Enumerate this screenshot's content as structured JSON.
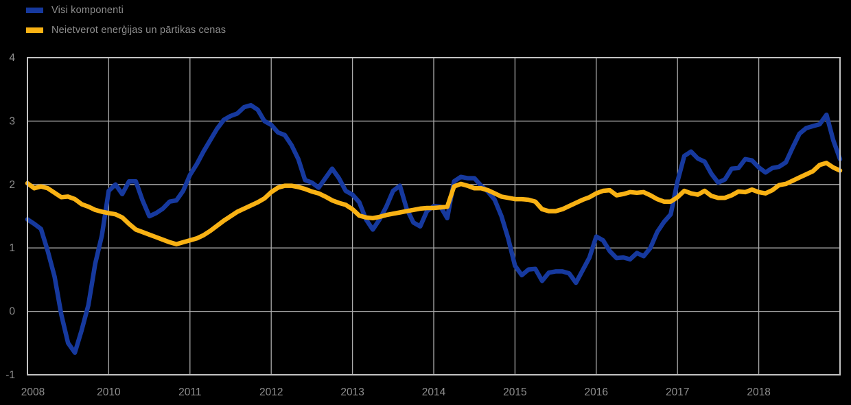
{
  "legend": {
    "position": "top-left",
    "items": [
      {
        "label": "Visi komponenti",
        "swatch_color": "#16399E"
      },
      {
        "label": "Neietverot enerģijas un pārtikas cenas",
        "swatch_color": "#F9B214"
      }
    ]
  },
  "chart_data": {
    "type": "line",
    "title": "",
    "xlabel": "",
    "ylabel": "",
    "ylim": [
      -1,
      4
    ],
    "y_ticks": [
      4,
      3,
      2,
      1,
      0,
      -1
    ],
    "x_ticks": [
      {
        "label": "2008",
        "month": 0
      },
      {
        "label": "2010",
        "month": 12
      },
      {
        "label": "2011",
        "month": 24
      },
      {
        "label": "2012",
        "month": 36
      },
      {
        "label": "2013",
        "month": 48
      },
      {
        "label": "2014",
        "month": 60
      },
      {
        "label": "2015",
        "month": 72
      },
      {
        "label": "2016",
        "month": 84
      },
      {
        "label": "2017",
        "month": 96
      },
      {
        "label": "2018",
        "month": 108
      }
    ],
    "months_total": 120,
    "grid": true,
    "legend_position": "top-left",
    "colors": {
      "grid": "#ABABAB",
      "border": "#C4C4C4",
      "tick_text": "#8E8E8E",
      "background": "#000000"
    },
    "series": [
      {
        "name": "Visi komponenti",
        "color": "#16399E",
        "values": [
          1.45,
          1.38,
          1.3,
          0.95,
          0.55,
          -0.05,
          -0.5,
          -0.65,
          -0.3,
          0.1,
          0.75,
          1.2,
          1.9,
          2.0,
          1.85,
          2.05,
          2.05,
          1.75,
          1.5,
          1.55,
          1.62,
          1.73,
          1.75,
          1.9,
          2.15,
          2.32,
          2.52,
          2.7,
          2.88,
          3.02,
          3.08,
          3.12,
          3.22,
          3.25,
          3.18,
          3.0,
          2.94,
          2.82,
          2.78,
          2.62,
          2.4,
          2.07,
          2.03,
          1.95,
          2.1,
          2.25,
          2.1,
          1.9,
          1.84,
          1.72,
          1.45,
          1.29,
          1.45,
          1.65,
          1.9,
          1.98,
          1.62,
          1.4,
          1.34,
          1.58,
          1.66,
          1.65,
          1.47,
          2.05,
          2.12,
          2.1,
          2.1,
          1.98,
          1.89,
          1.76,
          1.5,
          1.15,
          0.72,
          0.57,
          0.66,
          0.67,
          0.48,
          0.61,
          0.63,
          0.63,
          0.6,
          0.45,
          0.65,
          0.85,
          1.18,
          1.12,
          0.95,
          0.84,
          0.85,
          0.82,
          0.92,
          0.87,
          1.0,
          1.25,
          1.41,
          1.53,
          2.05,
          2.45,
          2.52,
          2.41,
          2.36,
          2.17,
          2.03,
          2.08,
          2.25,
          2.26,
          2.4,
          2.38,
          2.27,
          2.19,
          2.26,
          2.28,
          2.35,
          2.58,
          2.8,
          2.89,
          2.92,
          2.95,
          3.1,
          2.7,
          2.4
        ]
      },
      {
        "name": "Neietverot enerģijas un pārtikas cenas",
        "color": "#F9B214",
        "values": [
          2.02,
          1.94,
          1.97,
          1.94,
          1.87,
          1.8,
          1.81,
          1.77,
          1.69,
          1.65,
          1.6,
          1.57,
          1.55,
          1.53,
          1.48,
          1.38,
          1.29,
          1.25,
          1.21,
          1.17,
          1.13,
          1.09,
          1.06,
          1.09,
          1.12,
          1.15,
          1.2,
          1.27,
          1.35,
          1.43,
          1.5,
          1.57,
          1.62,
          1.67,
          1.72,
          1.78,
          1.88,
          1.95,
          1.98,
          1.98,
          1.96,
          1.93,
          1.89,
          1.86,
          1.81,
          1.75,
          1.71,
          1.68,
          1.61,
          1.51,
          1.48,
          1.47,
          1.49,
          1.52,
          1.54,
          1.56,
          1.58,
          1.6,
          1.62,
          1.63,
          1.63,
          1.64,
          1.65,
          1.97,
          2.01,
          1.98,
          1.94,
          1.94,
          1.91,
          1.86,
          1.81,
          1.79,
          1.77,
          1.77,
          1.76,
          1.73,
          1.61,
          1.58,
          1.58,
          1.61,
          1.66,
          1.71,
          1.76,
          1.8,
          1.86,
          1.9,
          1.91,
          1.83,
          1.85,
          1.88,
          1.87,
          1.88,
          1.83,
          1.77,
          1.73,
          1.73,
          1.8,
          1.9,
          1.86,
          1.84,
          1.9,
          1.82,
          1.79,
          1.79,
          1.83,
          1.89,
          1.88,
          1.92,
          1.88,
          1.86,
          1.91,
          1.99,
          2.01,
          2.06,
          2.11,
          2.16,
          2.21,
          2.31,
          2.34,
          2.27,
          2.22
        ]
      }
    ]
  }
}
